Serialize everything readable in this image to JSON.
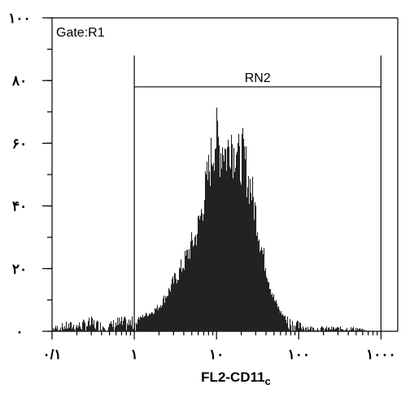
{
  "chart_data": {
    "type": "area",
    "title": "",
    "gate_label": "Gate:R1",
    "xlabel": "FL2-CD11c",
    "xlabel_main": "FL2-CD11",
    "xlabel_sub": "c",
    "ylabel": "",
    "x_scale": "log",
    "xlim": [
      0.1,
      1600
    ],
    "ylim": [
      0,
      100
    ],
    "x_ticks": [
      {
        "value": 0.1,
        "label": "۰/۱"
      },
      {
        "value": 1,
        "label": "۱"
      },
      {
        "value": 10,
        "label": "۱۰"
      },
      {
        "value": 100,
        "label": "۱۰۰"
      },
      {
        "value": 1000,
        "label": "۱۰۰۰"
      }
    ],
    "y_ticks": [
      {
        "value": 0,
        "label": "۰"
      },
      {
        "value": 20,
        "label": "۲۰"
      },
      {
        "value": 40,
        "label": "۴۰"
      },
      {
        "value": 60,
        "label": "۶۰"
      },
      {
        "value": 80,
        "label": "۸۰"
      },
      {
        "value": 100,
        "label": "۱۰۰"
      }
    ],
    "marker": {
      "label": "RN2",
      "x_start": 1,
      "x_end": 1000,
      "y": 78
    },
    "grid": false,
    "legend": "none",
    "series": [
      {
        "x": [
          0.1,
          0.15,
          0.2,
          0.3,
          0.4,
          0.5,
          0.6,
          0.8,
          1.0,
          1.3,
          1.6,
          2.0,
          2.5,
          3.0,
          3.5,
          4.0,
          4.5,
          5.0,
          5.5,
          6.0,
          6.5,
          7.0,
          7.5,
          8.0,
          8.5,
          9.0,
          9.5,
          10.0,
          11.0,
          12.0,
          13.0,
          14.0,
          15.0,
          16.0,
          17.0,
          18.0,
          19.0,
          20.0,
          22.0,
          24.0,
          26.0,
          28.0,
          30.0,
          33.0,
          36.0,
          40.0,
          45.0,
          50.0,
          60.0,
          70.0,
          80.0,
          100.0,
          150.0,
          200.0,
          300.0,
          500.0,
          700.0,
          1000.0,
          1600.0
        ],
        "y": [
          1,
          2,
          2,
          3,
          2,
          2,
          3,
          3,
          3,
          5,
          6,
          8,
          12,
          16,
          19,
          22,
          25,
          28,
          30,
          34,
          38,
          43,
          47,
          51,
          55,
          58,
          61,
          62,
          57,
          60,
          56,
          59,
          63,
          56,
          61,
          57,
          52,
          57,
          54,
          48,
          46,
          41,
          37,
          30,
          25,
          20,
          14,
          10,
          6,
          4,
          3,
          2,
          1,
          1,
          1,
          1,
          0,
          0,
          0
        ]
      }
    ],
    "colors": {
      "fill": "#222222",
      "axis": "#000000",
      "background": "#ffffff"
    }
  }
}
